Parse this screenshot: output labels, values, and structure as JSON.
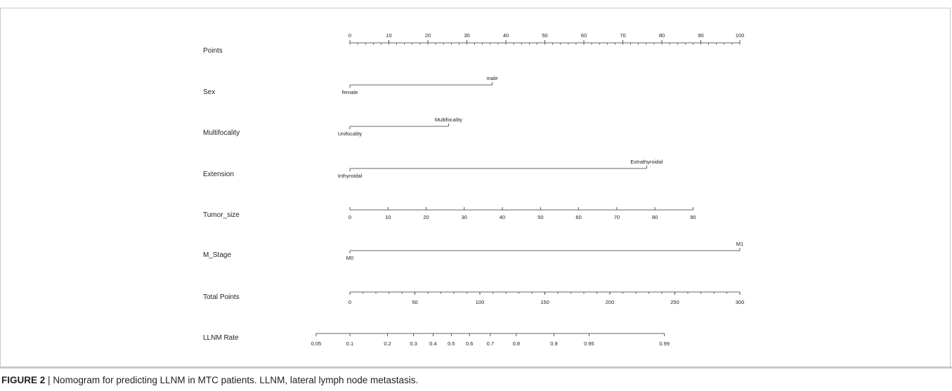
{
  "chart_data": {
    "type": "nomogram",
    "rows": [
      {
        "label": "Points",
        "kind": "points-scale",
        "min": 0,
        "max": 100,
        "ticks": [
          0,
          10,
          20,
          30,
          40,
          50,
          60,
          70,
          80,
          90,
          100
        ],
        "tick_labels": [
          "0",
          "10",
          "20",
          "30",
          "40",
          "50",
          "60",
          "70",
          "80",
          "90",
          "100"
        ],
        "minor_step": 2
      },
      {
        "label": "Sex",
        "kind": "categorical",
        "levels": [
          {
            "name": "female",
            "points": 0
          },
          {
            "name": "male",
            "points": 36.5
          }
        ]
      },
      {
        "label": "Multifocality",
        "kind": "categorical",
        "levels": [
          {
            "name": "Unifocality",
            "points": 0
          },
          {
            "name": "Multifocality",
            "points": 25.3
          }
        ]
      },
      {
        "label": "Extension",
        "kind": "categorical",
        "levels": [
          {
            "name": "Inthyroidal",
            "points": 0
          },
          {
            "name": "Extrathyroidal",
            "points": 76.1
          }
        ]
      },
      {
        "label": "Tumor_size",
        "kind": "continuous",
        "min": 0,
        "max": 90,
        "points_at_max": 88,
        "ticks": [
          0,
          10,
          20,
          30,
          40,
          50,
          60,
          70,
          80,
          90
        ],
        "tick_labels": [
          "0",
          "10",
          "20",
          "30",
          "40",
          "50",
          "60",
          "70",
          "80",
          "90"
        ]
      },
      {
        "label": "M_Stage",
        "kind": "categorical",
        "levels": [
          {
            "name": "M0",
            "points": 0
          },
          {
            "name": "M1",
            "points": 100
          }
        ]
      },
      {
        "label": "Total Points",
        "kind": "total-scale",
        "min": 0,
        "max": 300,
        "ticks": [
          0,
          50,
          100,
          150,
          200,
          250,
          300
        ],
        "tick_labels": [
          "0",
          "50",
          "100",
          "150",
          "200",
          "250",
          "300"
        ],
        "minor_step": 10
      },
      {
        "label": "LLNM Rate",
        "kind": "probability",
        "ticks": [
          {
            "p": 0.05,
            "label": "0.05",
            "total_points": -26
          },
          {
            "p": 0.1,
            "label": "0.1",
            "total_points": 0
          },
          {
            "p": 0.2,
            "label": "0.2",
            "total_points": 29
          },
          {
            "p": 0.3,
            "label": "0.3",
            "total_points": 49
          },
          {
            "p": 0.4,
            "label": "0.4",
            "total_points": 64
          },
          {
            "p": 0.5,
            "label": "0.5",
            "total_points": 78
          },
          {
            "p": 0.6,
            "label": "0.6",
            "total_points": 92
          },
          {
            "p": 0.7,
            "label": "0.7",
            "total_points": 108
          },
          {
            "p": 0.8,
            "label": "0.8",
            "total_points": 128
          },
          {
            "p": 0.9,
            "label": "0.9",
            "total_points": 157
          },
          {
            "p": 0.95,
            "label": "0.95",
            "total_points": 184
          },
          {
            "p": 0.99,
            "label": "0.99",
            "total_points": 242
          }
        ]
      }
    ]
  },
  "caption": {
    "label": "FIGURE 2",
    "separator": "|",
    "text": "Nomogram for predicting LLNM in MTC patients. LLNM, lateral lymph node metastasis."
  }
}
